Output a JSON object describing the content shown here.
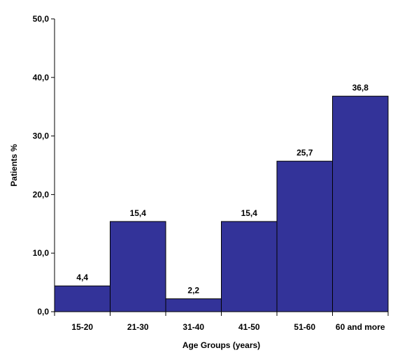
{
  "chart_data": {
    "type": "bar",
    "title": "",
    "xlabel": "Age Groups (years)",
    "ylabel": "Patients %",
    "categories": [
      "15-20",
      "21-30",
      "31-40",
      "41-50",
      "51-60",
      "60 and more"
    ],
    "values": [
      4.4,
      15.4,
      2.2,
      15.4,
      25.7,
      36.8
    ],
    "value_labels": [
      "4,4",
      "15,4",
      "2,2",
      "15,4",
      "25,7",
      "36,8"
    ],
    "ylim": [
      0,
      50
    ],
    "yticks": [
      0,
      10,
      20,
      30,
      40,
      50
    ],
    "ytick_labels": [
      "0,0",
      "10,0",
      "20,0",
      "30,0",
      "40,0",
      "50,0"
    ],
    "grid": false,
    "legend": "none",
    "bar_color": "#333399",
    "bar_edge_color": "#000000"
  }
}
